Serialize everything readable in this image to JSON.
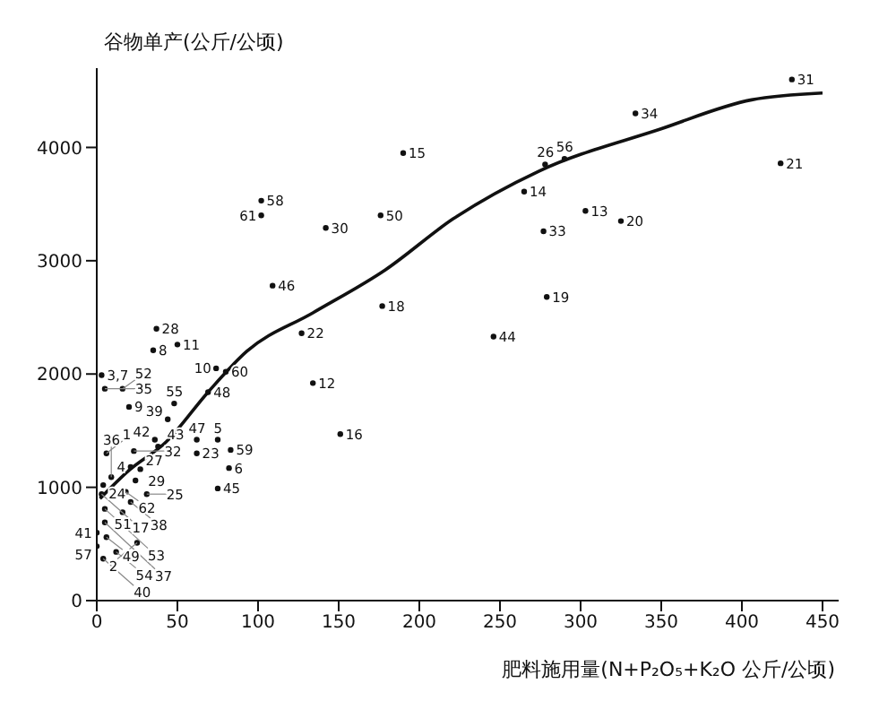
{
  "chart_data": {
    "type": "scatter",
    "xlabel": "肥料施用量(N+P₂O₅+K₂O 公斤/公顷)",
    "ylabel": "谷物单产(公斤/公顷)",
    "xlim": [
      0,
      460
    ],
    "xticks": [
      0,
      50,
      100,
      150,
      200,
      250,
      300,
      350,
      400,
      450
    ],
    "ylim": [
      0,
      4700
    ],
    "yticks": [
      0,
      1000,
      2000,
      3000,
      4000
    ],
    "grid": false,
    "marker": "circle",
    "series": [
      {
        "color": "#111111",
        "x": [
          190,
          102,
          102,
          176,
          142,
          109,
          177,
          127,
          37,
          35,
          50,
          74,
          80,
          134,
          69,
          3,
          5,
          16,
          20,
          48,
          44,
          36,
          23,
          38,
          6,
          62,
          75,
          83,
          62,
          82,
          75,
          21,
          27,
          9,
          24,
          4,
          18,
          31,
          3,
          21,
          5,
          16,
          5,
          0,
          6,
          25,
          0,
          12,
          4,
          151,
          431,
          334,
          290,
          278,
          265,
          424,
          303,
          325,
          277,
          279,
          246
        ],
        "values": [
          3950,
          3530,
          3400,
          3400,
          3290,
          2780,
          2600,
          2360,
          2400,
          2210,
          2260,
          2050,
          2020,
          1920,
          1840,
          1990,
          1870,
          1870,
          1710,
          1740,
          1600,
          1420,
          1320,
          1360,
          1300,
          1420,
          1420,
          1330,
          1300,
          1170,
          990,
          1180,
          1160,
          1090,
          1060,
          1020,
          960,
          940,
          940,
          870,
          810,
          780,
          690,
          600,
          560,
          510,
          480,
          430,
          370,
          1470,
          4600,
          4300,
          3900,
          3850,
          3610,
          3860,
          3440,
          3350,
          3260,
          2680,
          2330
        ]
      },
      {
        "type": "line",
        "color": "#111111",
        "marker": "none",
        "line_style": "solid",
        "x": [
          2,
          20,
          43,
          69,
          93,
          134,
          179,
          221,
          274,
          349,
          406,
          450
        ],
        "values": [
          900,
          1150,
          1400,
          1840,
          2200,
          2540,
          2920,
          3370,
          3790,
          4160,
          4420,
          4480
        ]
      }
    ],
    "annotations": [
      {
        "text": "15",
        "x": 190,
        "y": 3950
      },
      {
        "text": "58",
        "x": 102,
        "y": 3530
      },
      {
        "text": "61",
        "x": 102,
        "y": 3400
      },
      {
        "text": "50",
        "x": 176,
        "y": 3400
      },
      {
        "text": "30",
        "x": 142,
        "y": 3290
      },
      {
        "text": "46",
        "x": 109,
        "y": 2780
      },
      {
        "text": "18",
        "x": 177,
        "y": 2600
      },
      {
        "text": "22",
        "x": 127,
        "y": 2360
      },
      {
        "text": "28",
        "x": 37,
        "y": 2400
      },
      {
        "text": "8",
        "x": 35,
        "y": 2210
      },
      {
        "text": "11",
        "x": 50,
        "y": 2260
      },
      {
        "text": "10",
        "x": 74,
        "y": 2050
      },
      {
        "text": "60",
        "x": 80,
        "y": 2020
      },
      {
        "text": "12",
        "x": 134,
        "y": 1920
      },
      {
        "text": "48",
        "x": 69,
        "y": 1840
      },
      {
        "text": "3,7",
        "x": 3,
        "y": 1990
      },
      {
        "text": "35",
        "x": 5,
        "y": 1870
      },
      {
        "text": "52",
        "x": 16,
        "y": 1870
      },
      {
        "text": "9",
        "x": 20,
        "y": 1710
      },
      {
        "text": "55",
        "x": 48,
        "y": 1740
      },
      {
        "text": "39",
        "x": 44,
        "y": 1600
      },
      {
        "text": "42",
        "x": 36,
        "y": 1420
      },
      {
        "text": "32",
        "x": 23,
        "y": 1320
      },
      {
        "text": "43",
        "x": 38,
        "y": 1360
      },
      {
        "text": "1",
        "x": 6,
        "y": 1300
      },
      {
        "text": "47",
        "x": 62,
        "y": 1420
      },
      {
        "text": "5",
        "x": 75,
        "y": 1420
      },
      {
        "text": "59",
        "x": 83,
        "y": 1330
      },
      {
        "text": "23",
        "x": 62,
        "y": 1300
      },
      {
        "text": "6",
        "x": 82,
        "y": 1170
      },
      {
        "text": "45",
        "x": 75,
        "y": 990
      },
      {
        "text": "4",
        "x": 21,
        "y": 1180
      },
      {
        "text": "27",
        "x": 27,
        "y": 1160
      },
      {
        "text": "36",
        "x": 9,
        "y": 1090
      },
      {
        "text": "29",
        "x": 24,
        "y": 1060
      },
      {
        "text": "24",
        "x": 4,
        "y": 1020
      },
      {
        "text": "62",
        "x": 18,
        "y": 960
      },
      {
        "text": "25",
        "x": 31,
        "y": 940
      },
      {
        "text": "17",
        "x": 3,
        "y": 940
      },
      {
        "text": "38",
        "x": 21,
        "y": 870
      },
      {
        "text": "53",
        "x": 5,
        "y": 810
      },
      {
        "text": "51",
        "x": 16,
        "y": 780
      },
      {
        "text": "37",
        "x": 5,
        "y": 690
      },
      {
        "text": "41",
        "x": 0,
        "y": 600
      },
      {
        "text": "49",
        "x": 6,
        "y": 560
      },
      {
        "text": "2",
        "x": 25,
        "y": 510
      },
      {
        "text": "57",
        "x": 0,
        "y": 480
      },
      {
        "text": "54",
        "x": 12,
        "y": 430
      },
      {
        "text": "40",
        "x": 4,
        "y": 370
      },
      {
        "text": "16",
        "x": 151,
        "y": 1470
      },
      {
        "text": "31",
        "x": 431,
        "y": 4600
      },
      {
        "text": "34",
        "x": 334,
        "y": 4300
      },
      {
        "text": "56",
        "x": 290,
        "y": 3900
      },
      {
        "text": "26",
        "x": 278,
        "y": 3850
      },
      {
        "text": "14",
        "x": 265,
        "y": 3610
      },
      {
        "text": "21",
        "x": 424,
        "y": 3860
      },
      {
        "text": "13",
        "x": 303,
        "y": 3440
      },
      {
        "text": "20",
        "x": 325,
        "y": 3350
      },
      {
        "text": "33",
        "x": 277,
        "y": 3260
      },
      {
        "text": "19",
        "x": 279,
        "y": 2680
      },
      {
        "text": "44",
        "x": 246,
        "y": 2330
      }
    ]
  }
}
